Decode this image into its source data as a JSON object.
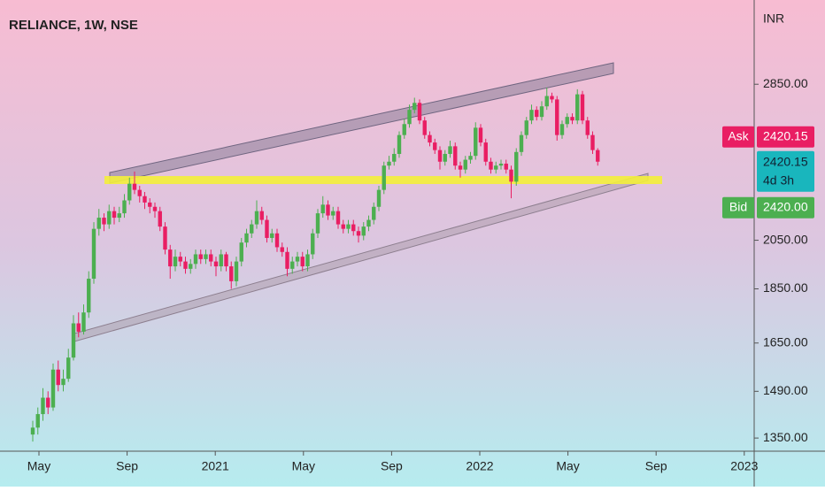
{
  "chart_data": {
    "type": "candlestick",
    "title": "RELIANCE, 1W, NSE",
    "y_axis_label": "INR",
    "log_scale": true,
    "ylim": [
      1313,
      3405
    ],
    "yticks": [
      {
        "value": 1350,
        "label": "1350.00"
      },
      {
        "value": 1490,
        "label": "1490.00"
      },
      {
        "value": 1650,
        "label": "1650.00"
      },
      {
        "value": 1850,
        "label": "1850.00"
      },
      {
        "value": 2050,
        "label": "2050.00"
      },
      {
        "value": 2850,
        "label": "2850.00"
      }
    ],
    "xticks": [
      {
        "value": "2020-05",
        "label": "May"
      },
      {
        "value": "2020-09",
        "label": "Sep"
      },
      {
        "value": "2021-01",
        "label": "2021"
      },
      {
        "value": "2021-05",
        "label": "May"
      },
      {
        "value": "2021-09",
        "label": "Sep"
      },
      {
        "value": "2022-01",
        "label": "2022"
      },
      {
        "value": "2022-05",
        "label": "May"
      },
      {
        "value": "2022-09",
        "label": "Sep"
      },
      {
        "value": "2023-01",
        "label": "2023"
      }
    ],
    "up_color": "#4caf50",
    "down_color": "#e91e63",
    "ohlc": [
      [
        1360,
        1400,
        1340,
        1380
      ],
      [
        1380,
        1440,
        1360,
        1420
      ],
      [
        1420,
        1500,
        1400,
        1470
      ],
      [
        1470,
        1490,
        1420,
        1440
      ],
      [
        1440,
        1580,
        1430,
        1560
      ],
      [
        1560,
        1590,
        1490,
        1510
      ],
      [
        1510,
        1560,
        1490,
        1530
      ],
      [
        1530,
        1630,
        1520,
        1600
      ],
      [
        1600,
        1750,
        1590,
        1720
      ],
      [
        1720,
        1760,
        1670,
        1690
      ],
      [
        1690,
        1790,
        1680,
        1760
      ],
      [
        1760,
        1920,
        1740,
        1890
      ],
      [
        1890,
        2130,
        1870,
        2100
      ],
      [
        2100,
        2190,
        2070,
        2150
      ],
      [
        2150,
        2170,
        2090,
        2120
      ],
      [
        2120,
        2210,
        2100,
        2180
      ],
      [
        2180,
        2200,
        2120,
        2150
      ],
      [
        2150,
        2200,
        2130,
        2170
      ],
      [
        2170,
        2260,
        2150,
        2230
      ],
      [
        2230,
        2340,
        2210,
        2310
      ],
      [
        2310,
        2370,
        2260,
        2280
      ],
      [
        2280,
        2300,
        2220,
        2250
      ],
      [
        2250,
        2270,
        2190,
        2220
      ],
      [
        2220,
        2240,
        2170,
        2200
      ],
      [
        2200,
        2220,
        2150,
        2180
      ],
      [
        2180,
        2200,
        2090,
        2110
      ],
      [
        2110,
        2130,
        1990,
        2010
      ],
      [
        2010,
        2030,
        1890,
        1940
      ],
      [
        1940,
        2010,
        1920,
        1980
      ],
      [
        1980,
        2000,
        1940,
        1960
      ],
      [
        1960,
        1980,
        1910,
        1930
      ],
      [
        1930,
        1970,
        1910,
        1950
      ],
      [
        1950,
        2010,
        1930,
        1990
      ],
      [
        1990,
        2010,
        1950,
        1970
      ],
      [
        1970,
        2010,
        1950,
        1990
      ],
      [
        1990,
        2010,
        1940,
        1960
      ],
      [
        1960,
        1980,
        1900,
        1940
      ],
      [
        1940,
        2010,
        1920,
        1990
      ],
      [
        1990,
        2000,
        1920,
        1940
      ],
      [
        1940,
        1960,
        1850,
        1880
      ],
      [
        1880,
        1980,
        1860,
        1960
      ],
      [
        1960,
        2060,
        1940,
        2040
      ],
      [
        2040,
        2100,
        2020,
        2080
      ],
      [
        2080,
        2140,
        2060,
        2120
      ],
      [
        2120,
        2230,
        2100,
        2180
      ],
      [
        2180,
        2200,
        2120,
        2140
      ],
      [
        2140,
        2160,
        2040,
        2060
      ],
      [
        2060,
        2100,
        2040,
        2080
      ],
      [
        2080,
        2100,
        2000,
        2020
      ],
      [
        2020,
        2040,
        1980,
        2000
      ],
      [
        2000,
        2020,
        1900,
        1930
      ],
      [
        1930,
        1980,
        1910,
        1960
      ],
      [
        1960,
        2000,
        1940,
        1980
      ],
      [
        1980,
        2000,
        1920,
        1940
      ],
      [
        1940,
        2010,
        1920,
        1990
      ],
      [
        1990,
        2100,
        1970,
        2080
      ],
      [
        2080,
        2190,
        2060,
        2170
      ],
      [
        2170,
        2250,
        2150,
        2210
      ],
      [
        2210,
        2230,
        2140,
        2160
      ],
      [
        2160,
        2200,
        2140,
        2180
      ],
      [
        2180,
        2200,
        2100,
        2120
      ],
      [
        2120,
        2140,
        2080,
        2100
      ],
      [
        2100,
        2140,
        2080,
        2120
      ],
      [
        2120,
        2140,
        2070,
        2090
      ],
      [
        2090,
        2110,
        2040,
        2070
      ],
      [
        2070,
        2130,
        2050,
        2110
      ],
      [
        2110,
        2160,
        2090,
        2140
      ],
      [
        2140,
        2220,
        2120,
        2200
      ],
      [
        2200,
        2300,
        2180,
        2280
      ],
      [
        2280,
        2420,
        2260,
        2400
      ],
      [
        2400,
        2450,
        2380,
        2420
      ],
      [
        2420,
        2490,
        2400,
        2460
      ],
      [
        2460,
        2580,
        2440,
        2560
      ],
      [
        2560,
        2650,
        2540,
        2620
      ],
      [
        2620,
        2730,
        2600,
        2700
      ],
      [
        2700,
        2770,
        2680,
        2740
      ],
      [
        2740,
        2760,
        2620,
        2640
      ],
      [
        2640,
        2660,
        2540,
        2560
      ],
      [
        2560,
        2580,
        2500,
        2520
      ],
      [
        2520,
        2540,
        2460,
        2480
      ],
      [
        2480,
        2500,
        2380,
        2420
      ],
      [
        2420,
        2480,
        2400,
        2460
      ],
      [
        2460,
        2530,
        2440,
        2500
      ],
      [
        2500,
        2520,
        2380,
        2400
      ],
      [
        2400,
        2420,
        2340,
        2380
      ],
      [
        2380,
        2450,
        2360,
        2430
      ],
      [
        2430,
        2470,
        2410,
        2450
      ],
      [
        2450,
        2630,
        2430,
        2600
      ],
      [
        2600,
        2620,
        2500,
        2520
      ],
      [
        2520,
        2540,
        2400,
        2420
      ],
      [
        2420,
        2440,
        2360,
        2380
      ],
      [
        2380,
        2420,
        2360,
        2400
      ],
      [
        2400,
        2430,
        2380,
        2410
      ],
      [
        2410,
        2430,
        2360,
        2380
      ],
      [
        2380,
        2400,
        2240,
        2320
      ],
      [
        2320,
        2490,
        2300,
        2470
      ],
      [
        2470,
        2580,
        2450,
        2560
      ],
      [
        2560,
        2660,
        2540,
        2640
      ],
      [
        2640,
        2730,
        2620,
        2700
      ],
      [
        2700,
        2720,
        2640,
        2660
      ],
      [
        2660,
        2750,
        2640,
        2720
      ],
      [
        2720,
        2830,
        2700,
        2780
      ],
      [
        2780,
        2800,
        2740,
        2760
      ],
      [
        2760,
        2780,
        2530,
        2560
      ],
      [
        2560,
        2640,
        2540,
        2620
      ],
      [
        2620,
        2680,
        2600,
        2660
      ],
      [
        2660,
        2680,
        2620,
        2640
      ],
      [
        2640,
        2820,
        2620,
        2790
      ],
      [
        2790,
        2810,
        2620,
        2640
      ],
      [
        2640,
        2660,
        2540,
        2560
      ],
      [
        2560,
        2580,
        2460,
        2480
      ],
      [
        2480,
        2490,
        2400,
        2420
      ]
    ],
    "price_labels": {
      "ask_label": "Ask",
      "ask": 2420.15,
      "last": 2420.15,
      "countdown": "4d 3h",
      "bid_label": "Bid",
      "bid": {
        "value": 2420,
        "label": "2420.00"
      }
    }
  }
}
